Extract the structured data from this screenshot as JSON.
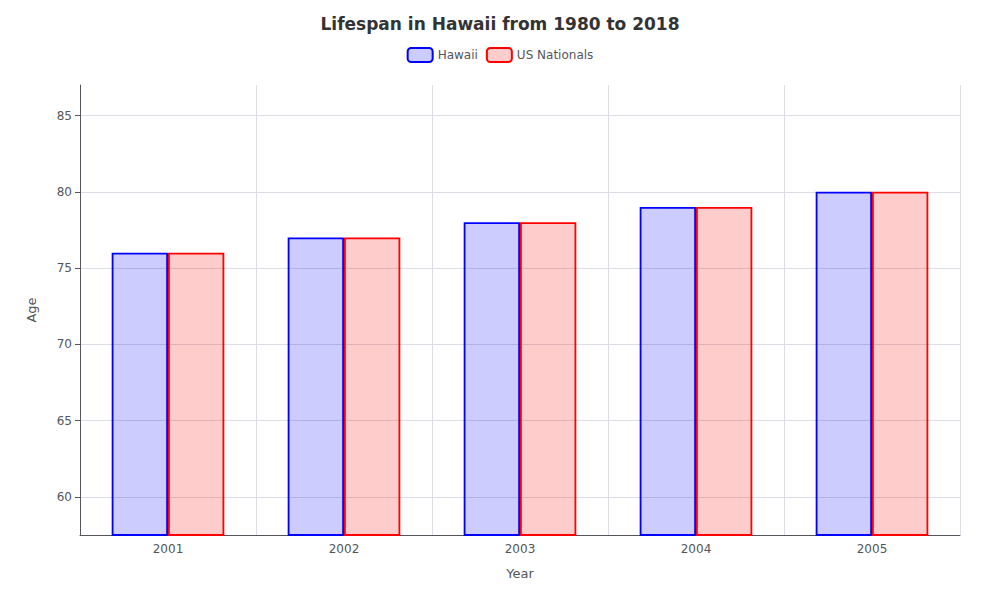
{
  "chart_data": {
    "type": "bar",
    "title": "Lifespan in Hawaii from 1980 to 2018",
    "x_label": "Year",
    "y_label": "Age",
    "categories": [
      "2001",
      "2002",
      "2003",
      "2004",
      "2005"
    ],
    "series": [
      {
        "name": "Hawaii",
        "color": "#0000ff",
        "values": [
          76,
          77,
          78,
          79,
          80
        ]
      },
      {
        "name": "US Nationals",
        "color": "#ff0000",
        "values": [
          76,
          77,
          78,
          79,
          80
        ]
      }
    ],
    "ylim": [
      57.5,
      87
    ],
    "yticks": [
      60,
      65,
      70,
      75,
      80,
      85
    ],
    "grid": true,
    "legend": "top"
  }
}
